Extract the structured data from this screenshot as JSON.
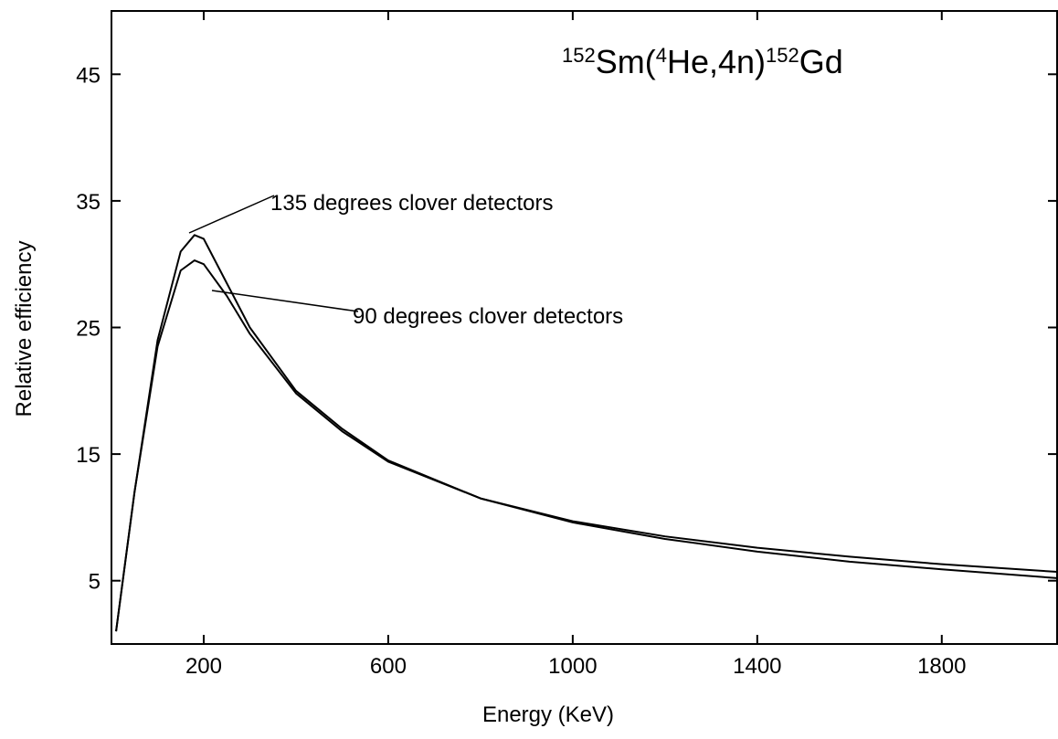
{
  "chart_data": {
    "type": "line",
    "title_parts": [
      "152",
      "Sm(",
      "4",
      "He,4n)",
      "152",
      "Gd"
    ],
    "xlabel": "Energy (KeV)",
    "ylabel": "Relative efficiency",
    "x": [
      10,
      50,
      100,
      150,
      180,
      200,
      250,
      300,
      400,
      500,
      600,
      800,
      1000,
      1200,
      1400,
      1600,
      1800,
      2050
    ],
    "series": [
      {
        "name": "135 degrees clover detectors",
        "color": "#000000",
        "values": [
          1,
          12,
          24,
          31,
          32.3,
          32,
          28.5,
          25,
          20,
          17,
          14.5,
          11.5,
          9.6,
          8.3,
          7.3,
          6.5,
          5.9,
          5.2
        ]
      },
      {
        "name": "90 degrees clover detectors",
        "color": "#000000",
        "values": [
          1,
          12,
          23.5,
          29.5,
          30.3,
          30,
          27.5,
          24.5,
          19.8,
          16.8,
          14.4,
          11.5,
          9.7,
          8.5,
          7.6,
          6.9,
          6.3,
          5.7
        ]
      }
    ],
    "xlim": [
      0,
      2050
    ],
    "xticks": [
      200,
      600,
      1000,
      1400,
      1800
    ],
    "ylim": [
      0,
      50
    ],
    "yticks": [
      5,
      15,
      25,
      35,
      45
    ]
  }
}
